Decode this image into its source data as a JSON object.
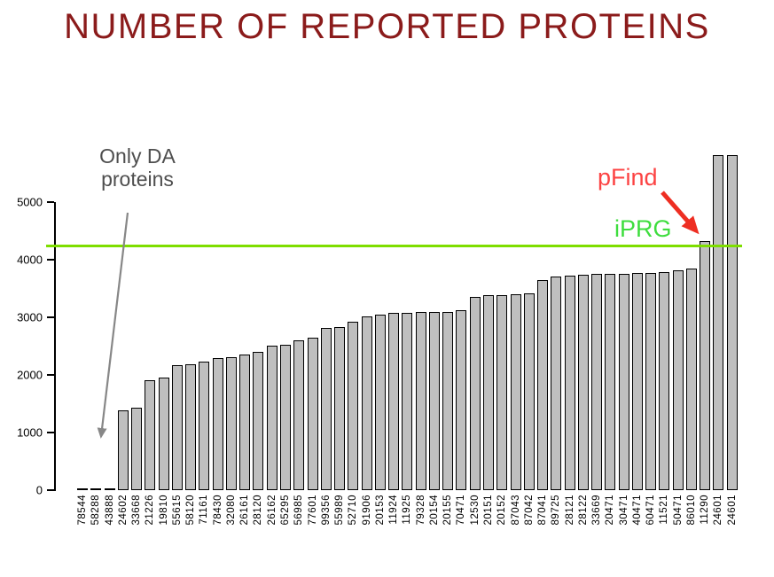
{
  "title": "NUMBER OF REPORTED PROTEINS",
  "annotations": {
    "only_da_line1": "Only DA",
    "only_da_line2": "proteins",
    "pfind_label": "pFind",
    "iprg_label": "iPRG"
  },
  "colors": {
    "title_maroon": "#8b1b1b",
    "bar_fill": "#bfbfbf",
    "bar_border": "#000000",
    "iprg_green": "#7ede00",
    "iprg_text_green": "#3edd3e",
    "pfind_text_red": "#fc4343",
    "pfind_arrow_red": "#ee2e22",
    "da_arrow_gray": "#878787",
    "da_text_gray": "#4e4e4e"
  },
  "chart_data": {
    "type": "bar",
    "title": "NUMBER OF REPORTED PROTEINS",
    "xlabel": "",
    "ylabel": "",
    "ylim": [
      0,
      5000
    ],
    "yticks": [
      0,
      1000,
      2000,
      3000,
      4000,
      5000
    ],
    "grid": false,
    "legend": "none",
    "categories": [
      "78544",
      "58288",
      "43888",
      "24602",
      "33668",
      "21226",
      "19810",
      "55615",
      "58120",
      "71161",
      "78430",
      "32080",
      "26161",
      "28120",
      "26162",
      "65295",
      "56985",
      "77601",
      "99356",
      "55989",
      "52710",
      "91906",
      "20153",
      "11924",
      "11925",
      "79328",
      "20154",
      "20155",
      "70471",
      "12530",
      "20151",
      "20152",
      "87043",
      "87042",
      "87041",
      "89725",
      "28121",
      "28122",
      "33669",
      "20471",
      "30471",
      "40471",
      "60471",
      "11521",
      "50471",
      "86010",
      "11290",
      "24601",
      "24601"
    ],
    "values": [
      10,
      10,
      10,
      1390,
      1430,
      1900,
      1950,
      2170,
      2190,
      2230,
      2290,
      2310,
      2350,
      2400,
      2500,
      2530,
      2600,
      2640,
      2810,
      2830,
      2920,
      3010,
      3040,
      3070,
      3080,
      3090,
      3090,
      3095,
      3120,
      3360,
      3380,
      3385,
      3400,
      3420,
      3640,
      3715,
      3720,
      3745,
      3755,
      3760,
      3760,
      3765,
      3770,
      3790,
      3810,
      3850,
      4330,
      5820,
      5820
    ],
    "reference_line": {
      "label": "iPRG",
      "value": 4250
    },
    "highlight": {
      "label": "pFind",
      "category": "11290",
      "value": 4330
    }
  }
}
